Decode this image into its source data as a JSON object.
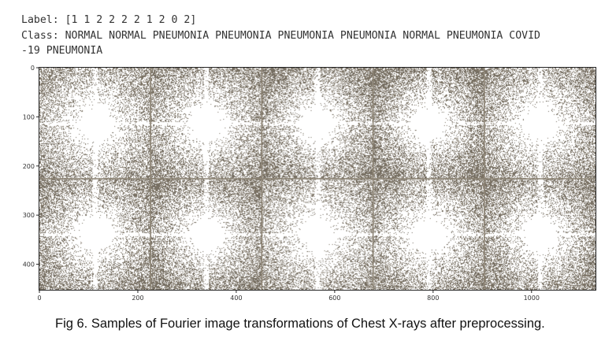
{
  "header": {
    "label_line": "Label: [1 1 2 2 2 2 1 2 0 2]",
    "class_line_1": "Class: NORMAL NORMAL PNEUMONIA PNEUMONIA PNEUMONIA PNEUMONIA NORMAL PNEUMONIA COVID",
    "class_line_2": "-19 PNEUMONIA"
  },
  "labels": [
    1,
    1,
    2,
    2,
    2,
    2,
    1,
    2,
    0,
    2
  ],
  "classes": [
    "NORMAL",
    "NORMAL",
    "PNEUMONIA",
    "PNEUMONIA",
    "PNEUMONIA",
    "PNEUMONIA",
    "NORMAL",
    "PNEUMONIA",
    "COVID-19",
    "PNEUMONIA"
  ],
  "image_grid": {
    "rows": 2,
    "cols": 5,
    "x_ticks": [
      "0",
      "200",
      "400",
      "600",
      "800",
      "1000"
    ],
    "y_ticks": [
      "0",
      "100",
      "200",
      "300",
      "400"
    ],
    "x_tick_values": [
      0,
      200,
      400,
      600,
      800,
      1000
    ],
    "y_tick_values": [
      0,
      100,
      200,
      300,
      400
    ],
    "x_max": 1130,
    "y_max": 452,
    "speckle_color": "#8a7f6d",
    "line_color": "#8c8374"
  },
  "caption": "Fig 6. Samples of Fourier image transformations of Chest X-rays after preprocessing."
}
